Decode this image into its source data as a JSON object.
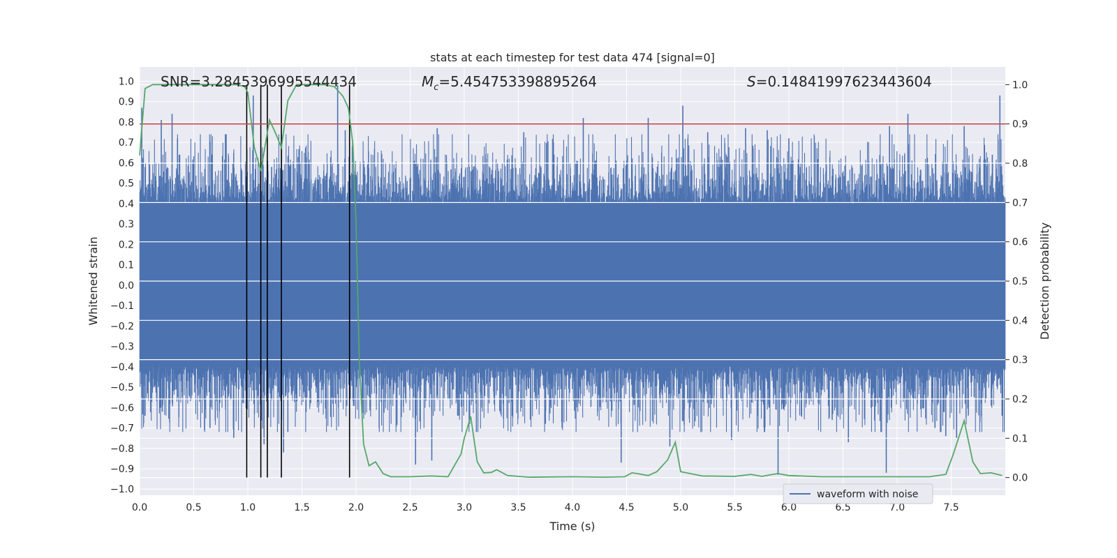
{
  "chart_data": {
    "type": "line",
    "title": "stats at each timestep for test data 474 [signal=0]",
    "xlabel": "Time (s)",
    "ylabel": "Whitened strain",
    "y2label": "Detection probability",
    "xlim": [
      0.0,
      8.0
    ],
    "ylim": [
      -1.03,
      1.07
    ],
    "y2lim": [
      -0.045,
      1.045
    ],
    "xticks": [
      0.0,
      0.5,
      1.0,
      1.5,
      2.0,
      2.5,
      3.0,
      3.5,
      4.0,
      4.5,
      5.0,
      5.5,
      6.0,
      6.5,
      7.0,
      7.5
    ],
    "xtick_labels": [
      "0.0",
      "0.5",
      "1.0",
      "1.5",
      "2.0",
      "2.5",
      "3.0",
      "3.5",
      "4.0",
      "4.5",
      "5.0",
      "5.5",
      "6.0",
      "6.5",
      "7.0",
      "7.5"
    ],
    "yticks": [
      1.0,
      0.9,
      0.8,
      0.7,
      0.6,
      0.5,
      0.4,
      0.3,
      0.2,
      0.1,
      0.0,
      -0.1,
      -0.2,
      -0.3,
      -0.4,
      -0.5,
      -0.6,
      -0.7,
      -0.8,
      -0.9,
      -1.0
    ],
    "ytick_labels": [
      "1.0",
      "0.9",
      "0.8",
      "0.7",
      "0.6",
      "0.5",
      "0.4",
      "0.3",
      "0.2",
      "0.1",
      "0.0",
      "−0.1",
      "−0.2",
      "−0.3",
      "−0.4",
      "−0.5",
      "−0.6",
      "−0.7",
      "−0.8",
      "−0.9",
      "−1.0"
    ],
    "y2ticks": [
      1.0,
      0.9,
      0.8,
      0.7,
      0.6,
      0.5,
      0.4,
      0.3,
      0.2,
      0.1,
      0.0
    ],
    "y2tick_labels": [
      "1.0",
      "0.9",
      "0.8",
      "0.7",
      "0.6",
      "0.5",
      "0.4",
      "0.3",
      "0.2",
      "0.1",
      "0.0"
    ],
    "annotations": {
      "snr": "SNR=3.2845396995544434",
      "mc_symbol": "M",
      "mc_sub": "c",
      "mc_value": "=5.454753398895264",
      "s_symbol": "S",
      "s_value": "=0.14841997623443604"
    },
    "threshold_line": {
      "y2": 0.9,
      "color": "#c44e52"
    },
    "vertical_markers": {
      "x": [
        0.99,
        1.12,
        1.18,
        1.31,
        1.94
      ],
      "y2_range": [
        0.0,
        1.0
      ],
      "color": "#000000"
    },
    "legend": {
      "entries": [
        "waveform with noise"
      ],
      "placement": "lower-right"
    },
    "grid": true,
    "series": [
      {
        "name": "waveform with noise",
        "axis": "left",
        "color": "#4c72b0",
        "style": "dense noise",
        "envelope_upper": 0.42,
        "envelope_lower": -0.42,
        "peaks": [
          {
            "x": 0.02,
            "y": 0.87
          },
          {
            "x": 0.02,
            "y": -0.55
          },
          {
            "x": 0.05,
            "y": -0.64
          },
          {
            "x": 0.2,
            "y": 0.81
          },
          {
            "x": 0.21,
            "y": -0.62
          },
          {
            "x": 0.3,
            "y": 0.84
          },
          {
            "x": 0.35,
            "y": 0.72
          },
          {
            "x": 0.6,
            "y": -0.71
          },
          {
            "x": 0.65,
            "y": -0.7
          },
          {
            "x": 0.8,
            "y": 0.74
          },
          {
            "x": 0.87,
            "y": -0.75
          },
          {
            "x": 1.05,
            "y": 0.93
          },
          {
            "x": 1.15,
            "y": -0.78
          },
          {
            "x": 1.22,
            "y": 0.58
          },
          {
            "x": 1.33,
            "y": -0.82
          },
          {
            "x": 1.37,
            "y": -0.72
          },
          {
            "x": 1.83,
            "y": 0.98
          },
          {
            "x": 1.9,
            "y": 0.76
          },
          {
            "x": 2.55,
            "y": -0.88
          },
          {
            "x": 2.7,
            "y": -0.86
          },
          {
            "x": 2.75,
            "y": 0.77
          },
          {
            "x": 3.05,
            "y": -0.68
          },
          {
            "x": 3.55,
            "y": 0.75
          },
          {
            "x": 3.75,
            "y": -0.68
          },
          {
            "x": 4.1,
            "y": 0.82
          },
          {
            "x": 4.45,
            "y": -0.87
          },
          {
            "x": 4.7,
            "y": 0.82
          },
          {
            "x": 4.9,
            "y": -0.79
          },
          {
            "x": 5.02,
            "y": 0.88
          },
          {
            "x": 5.25,
            "y": 0.75
          },
          {
            "x": 5.47,
            "y": -0.76
          },
          {
            "x": 5.6,
            "y": 0.77
          },
          {
            "x": 5.8,
            "y": 0.76
          },
          {
            "x": 5.9,
            "y": -0.93
          },
          {
            "x": 6.0,
            "y": 0.72
          },
          {
            "x": 6.4,
            "y": -0.66
          },
          {
            "x": 6.55,
            "y": -0.77
          },
          {
            "x": 6.9,
            "y": -0.92
          },
          {
            "x": 6.93,
            "y": 0.78
          },
          {
            "x": 7.1,
            "y": 0.84
          },
          {
            "x": 7.35,
            "y": -0.7
          },
          {
            "x": 7.45,
            "y": -0.74
          },
          {
            "x": 7.55,
            "y": -0.75
          },
          {
            "x": 7.62,
            "y": 0.78
          },
          {
            "x": 7.88,
            "y": 0.64
          },
          {
            "x": 7.95,
            "y": 0.93
          },
          {
            "x": 7.97,
            "y": -0.64
          }
        ]
      },
      {
        "name": "",
        "axis": "right",
        "color": "#55a868",
        "x": [
          0.0,
          0.05,
          0.12,
          0.25,
          0.5,
          0.75,
          0.9,
          0.97,
          1.0,
          1.06,
          1.12,
          1.2,
          1.25,
          1.31,
          1.37,
          1.45,
          1.55,
          1.7,
          1.8,
          1.88,
          1.93,
          1.97,
          2.0,
          2.03,
          2.07,
          2.12,
          2.18,
          2.25,
          2.32,
          2.5,
          2.7,
          2.85,
          2.97,
          3.0,
          3.06,
          3.12,
          3.18,
          3.25,
          3.3,
          3.4,
          3.6,
          4.0,
          4.3,
          4.48,
          4.55,
          4.6,
          4.7,
          4.78,
          4.88,
          4.95,
          5.0,
          5.2,
          5.5,
          5.65,
          5.75,
          5.85,
          5.9,
          6.0,
          6.3,
          6.9,
          7.3,
          7.45,
          7.52,
          7.62,
          7.7,
          7.77,
          7.87,
          7.97
        ],
        "y": [
          0.82,
          0.99,
          1.0,
          1.0,
          1.0,
          1.0,
          1.0,
          0.995,
          0.98,
          0.84,
          0.78,
          0.91,
          0.88,
          0.84,
          0.96,
          1.0,
          1.0,
          1.0,
          0.995,
          0.97,
          0.94,
          0.85,
          0.65,
          0.3,
          0.085,
          0.03,
          0.04,
          0.01,
          0.002,
          0.002,
          0.004,
          0.002,
          0.06,
          0.1,
          0.155,
          0.04,
          0.012,
          0.013,
          0.02,
          0.005,
          0.001,
          0.002,
          0.001,
          0.002,
          0.012,
          0.01,
          0.005,
          0.015,
          0.045,
          0.09,
          0.015,
          0.004,
          0.003,
          0.008,
          0.003,
          0.008,
          0.01,
          0.005,
          0.002,
          0.002,
          0.002,
          0.008,
          0.06,
          0.145,
          0.04,
          0.01,
          0.012,
          0.005
        ]
      }
    ]
  }
}
